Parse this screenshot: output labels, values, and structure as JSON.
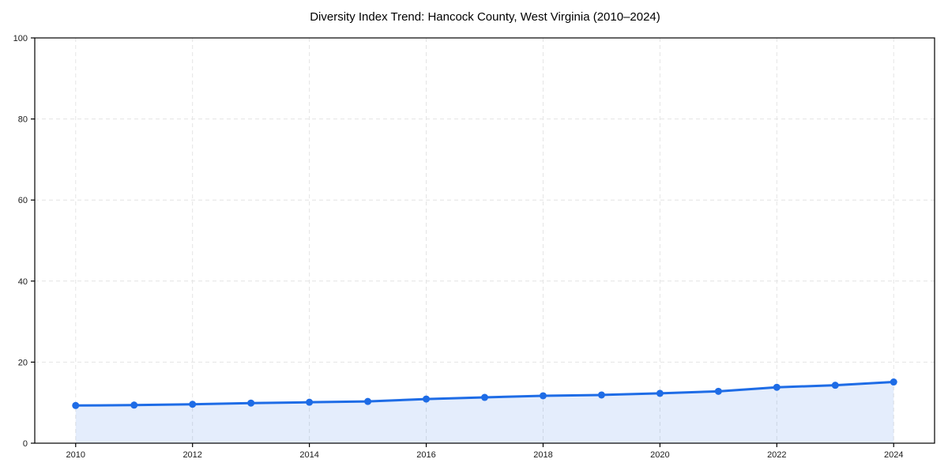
{
  "chart_data": {
    "type": "line",
    "title": "Diversity Index Trend: Hancock County, West Virginia (2010–2024)",
    "series": [
      {
        "name": "Diversity Index",
        "x": [
          2010,
          2011,
          2012,
          2013,
          2014,
          2015,
          2016,
          2017,
          2018,
          2019,
          2020,
          2021,
          2022,
          2023,
          2024
        ],
        "values": [
          9.3,
          9.4,
          9.6,
          9.9,
          10.1,
          10.3,
          10.9,
          11.3,
          11.7,
          11.9,
          12.3,
          12.8,
          13.8,
          14.3,
          15.1
        ]
      }
    ],
    "xlabel": "",
    "ylabel": "",
    "xticks": [
      2010,
      2012,
      2014,
      2016,
      2018,
      2020,
      2022,
      2024
    ],
    "yticks": [
      0,
      20,
      40,
      60,
      80,
      100
    ],
    "ylim": [
      0,
      100
    ],
    "xlim": [
      2009.3,
      2024.7
    ],
    "grid": true,
    "grid_style": "dashed",
    "legend": "none",
    "colors": {
      "line": "#1e6ce6",
      "marker": "#1e6ce6",
      "area_fill": "rgba(30,108,230,0.12)",
      "gridline": "#e4e4e4",
      "axis": "#000000",
      "tick_label": "#1a1a1a",
      "background": "#ffffff"
    }
  }
}
